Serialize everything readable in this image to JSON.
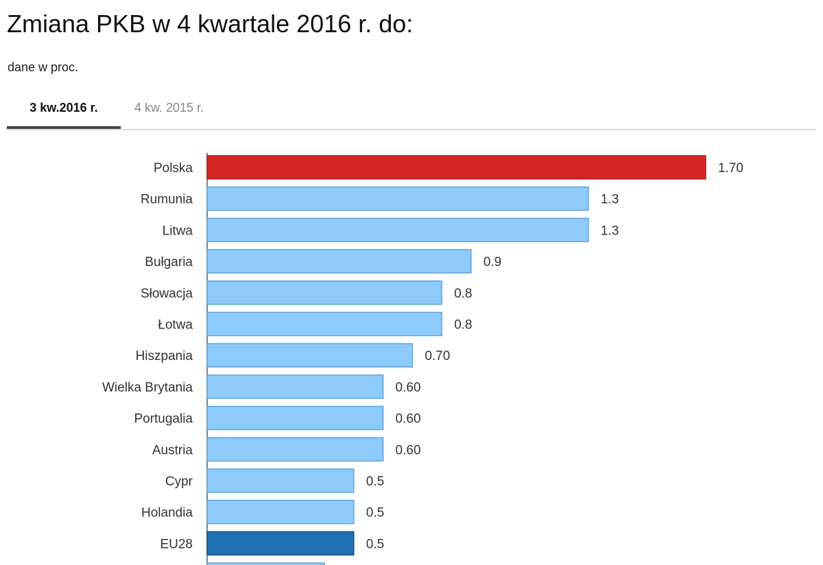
{
  "header": {
    "title": "Zmiana PKB w 4 kwartale 2016 r. do:",
    "subtitle": "dane w proc."
  },
  "tabs": [
    {
      "label": "3 kw.2016 r.",
      "active": true
    },
    {
      "label": "4 kw. 2015 r.",
      "active": false
    }
  ],
  "colors": {
    "highlight": "#d62728",
    "default": "#8ecbfb",
    "default_border": "#5ba3dc",
    "eu": "#2171b5"
  },
  "chart_data": {
    "type": "bar",
    "orientation": "horizontal",
    "categories": [
      "Polska",
      "Rumunia",
      "Litwa",
      "Bułgaria",
      "Słowacja",
      "Łotwa",
      "Hiszpania",
      "Wielka Brytania",
      "Portugalia",
      "Austria",
      "Cypr",
      "Holandia",
      "EU28"
    ],
    "values": [
      1.7,
      1.3,
      1.3,
      0.9,
      0.8,
      0.8,
      0.7,
      0.6,
      0.6,
      0.6,
      0.5,
      0.5,
      0.5
    ],
    "value_labels": [
      "1.70",
      "1.3",
      "1.3",
      "0.9",
      "0.8",
      "0.8",
      "0.70",
      "0.60",
      "0.60",
      "0.60",
      "0.5",
      "0.5",
      "0.5"
    ],
    "bar_colors": [
      "highlight",
      "default",
      "default",
      "default",
      "default",
      "default",
      "default",
      "default",
      "default",
      "default",
      "default",
      "default",
      "eu"
    ],
    "partial_next_value": 0.4,
    "xlim": [
      0,
      1.7
    ],
    "grid": false,
    "legend": "none"
  }
}
